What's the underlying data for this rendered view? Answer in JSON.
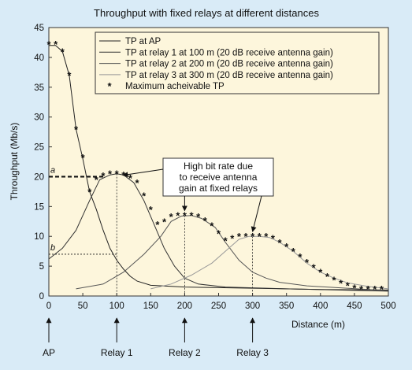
{
  "chart_data": {
    "type": "line",
    "title": "Throughput with fixed relays at different distances",
    "xlabel": "Distance (m)",
    "ylabel": "Throughput (Mb/s)",
    "xlim": [
      0,
      500
    ],
    "ylim": [
      0,
      45
    ],
    "xticks": [
      0,
      50,
      100,
      150,
      200,
      250,
      300,
      350,
      400,
      450,
      500
    ],
    "yticks": [
      0,
      5,
      10,
      15,
      20,
      25,
      30,
      35,
      40,
      45
    ],
    "grid": false,
    "legend_position": "top-right",
    "background": "#fdf6dc",
    "outer_background": "#d9ebf7",
    "series": [
      {
        "name": "TP at AP",
        "style": "line",
        "color": "#222222",
        "points": [
          [
            0,
            42
          ],
          [
            10,
            42
          ],
          [
            20,
            41
          ],
          [
            30,
            37
          ],
          [
            40,
            28
          ],
          [
            50,
            23
          ],
          [
            60,
            17.5
          ],
          [
            70,
            14.5
          ],
          [
            80,
            11
          ],
          [
            90,
            8
          ],
          [
            100,
            6
          ],
          [
            110,
            4.5
          ],
          [
            120,
            3.3
          ],
          [
            130,
            2.5
          ],
          [
            150,
            1.8
          ],
          [
            200,
            1.5
          ],
          [
            300,
            1.3
          ],
          [
            400,
            1.1
          ],
          [
            500,
            1.0
          ]
        ]
      },
      {
        "name": "TP at relay 1 at 100 m (20 dB receive antenna gain)",
        "style": "line",
        "color": "#333333",
        "points": [
          [
            0,
            6.2
          ],
          [
            20,
            8
          ],
          [
            40,
            11
          ],
          [
            60,
            16
          ],
          [
            75,
            19.5
          ],
          [
            90,
            20.3
          ],
          [
            100,
            20.5
          ],
          [
            110,
            20.3
          ],
          [
            125,
            19
          ],
          [
            140,
            16
          ],
          [
            155,
            12
          ],
          [
            170,
            8
          ],
          [
            185,
            5
          ],
          [
            200,
            3
          ],
          [
            220,
            2
          ],
          [
            260,
            1.5
          ],
          [
            350,
            1.2
          ],
          [
            500,
            0.8
          ]
        ]
      },
      {
        "name": "TP at relay 2 at 200 m (20 dB receive antenna gain)",
        "style": "line",
        "color": "#555555",
        "points": [
          [
            40,
            1.2
          ],
          [
            80,
            2
          ],
          [
            110,
            4
          ],
          [
            140,
            7
          ],
          [
            165,
            10
          ],
          [
            180,
            12.5
          ],
          [
            195,
            13.4
          ],
          [
            210,
            13.5
          ],
          [
            225,
            13
          ],
          [
            245,
            11.5
          ],
          [
            260,
            9
          ],
          [
            280,
            6
          ],
          [
            300,
            4
          ],
          [
            320,
            3
          ],
          [
            340,
            2.3
          ],
          [
            380,
            1.7
          ],
          [
            500,
            0.9
          ]
        ]
      },
      {
        "name": "TP at relay 3 at 300 m (20 dB receive antenna gain)",
        "style": "line",
        "color": "#999999",
        "points": [
          [
            150,
            1.2
          ],
          [
            180,
            2
          ],
          [
            210,
            3.5
          ],
          [
            240,
            5.5
          ],
          [
            265,
            8
          ],
          [
            280,
            9.5
          ],
          [
            295,
            10
          ],
          [
            310,
            10
          ],
          [
            325,
            9.8
          ],
          [
            340,
            9
          ],
          [
            360,
            7.5
          ],
          [
            380,
            5.5
          ],
          [
            400,
            4
          ],
          [
            420,
            3
          ],
          [
            440,
            2.2
          ],
          [
            470,
            1.6
          ],
          [
            500,
            1.2
          ]
        ]
      },
      {
        "name": "Maximum acheivable TP",
        "style": "markers",
        "marker": "*",
        "color": "#111111",
        "points": [
          [
            0,
            42.2
          ],
          [
            10,
            42.2
          ],
          [
            20,
            41
          ],
          [
            30,
            37
          ],
          [
            40,
            28
          ],
          [
            50,
            23.2
          ],
          [
            60,
            17.5
          ],
          [
            70,
            19.5
          ],
          [
            80,
            20.2
          ],
          [
            90,
            20.5
          ],
          [
            100,
            20.5
          ],
          [
            110,
            20.3
          ],
          [
            120,
            19.8
          ],
          [
            130,
            19
          ],
          [
            140,
            16.8
          ],
          [
            150,
            14.5
          ],
          [
            160,
            12
          ],
          [
            170,
            12.5
          ],
          [
            180,
            13.3
          ],
          [
            190,
            13.5
          ],
          [
            200,
            13.5
          ],
          [
            210,
            13.5
          ],
          [
            220,
            13.3
          ],
          [
            230,
            12.7
          ],
          [
            240,
            11.8
          ],
          [
            250,
            10.5
          ],
          [
            260,
            9.3
          ],
          [
            270,
            9.7
          ],
          [
            280,
            10
          ],
          [
            290,
            10
          ],
          [
            300,
            10
          ],
          [
            310,
            10
          ],
          [
            320,
            10
          ],
          [
            330,
            9.7
          ],
          [
            340,
            9
          ],
          [
            350,
            8.3
          ],
          [
            360,
            7.5
          ],
          [
            370,
            6.6
          ],
          [
            380,
            5.7
          ],
          [
            390,
            4.8
          ],
          [
            400,
            4
          ],
          [
            410,
            3.3
          ],
          [
            420,
            2.7
          ],
          [
            430,
            2.2
          ],
          [
            440,
            1.8
          ],
          [
            450,
            1.4
          ],
          [
            460,
            1.2
          ],
          [
            470,
            1.2
          ],
          [
            480,
            1.2
          ],
          [
            490,
            1.2
          ]
        ]
      }
    ],
    "annotations": {
      "callout_lines": [
        "High bit rate due",
        "to receive antenna",
        "gain at fixed relays"
      ],
      "label_a": "a",
      "label_a_y": 20,
      "label_b": "b",
      "label_b_y": 7,
      "vertical_guides_x": [
        100,
        200,
        300
      ],
      "callout_arrow_targets": [
        [
          100,
          20.5
        ],
        [
          200,
          13.5
        ],
        [
          300,
          10
        ]
      ]
    },
    "positions": [
      {
        "label": "AP",
        "x": 0
      },
      {
        "label": "Relay 1",
        "x": 100
      },
      {
        "label": "Relay 2",
        "x": 200
      },
      {
        "label": "Relay 3",
        "x": 300
      }
    ]
  }
}
